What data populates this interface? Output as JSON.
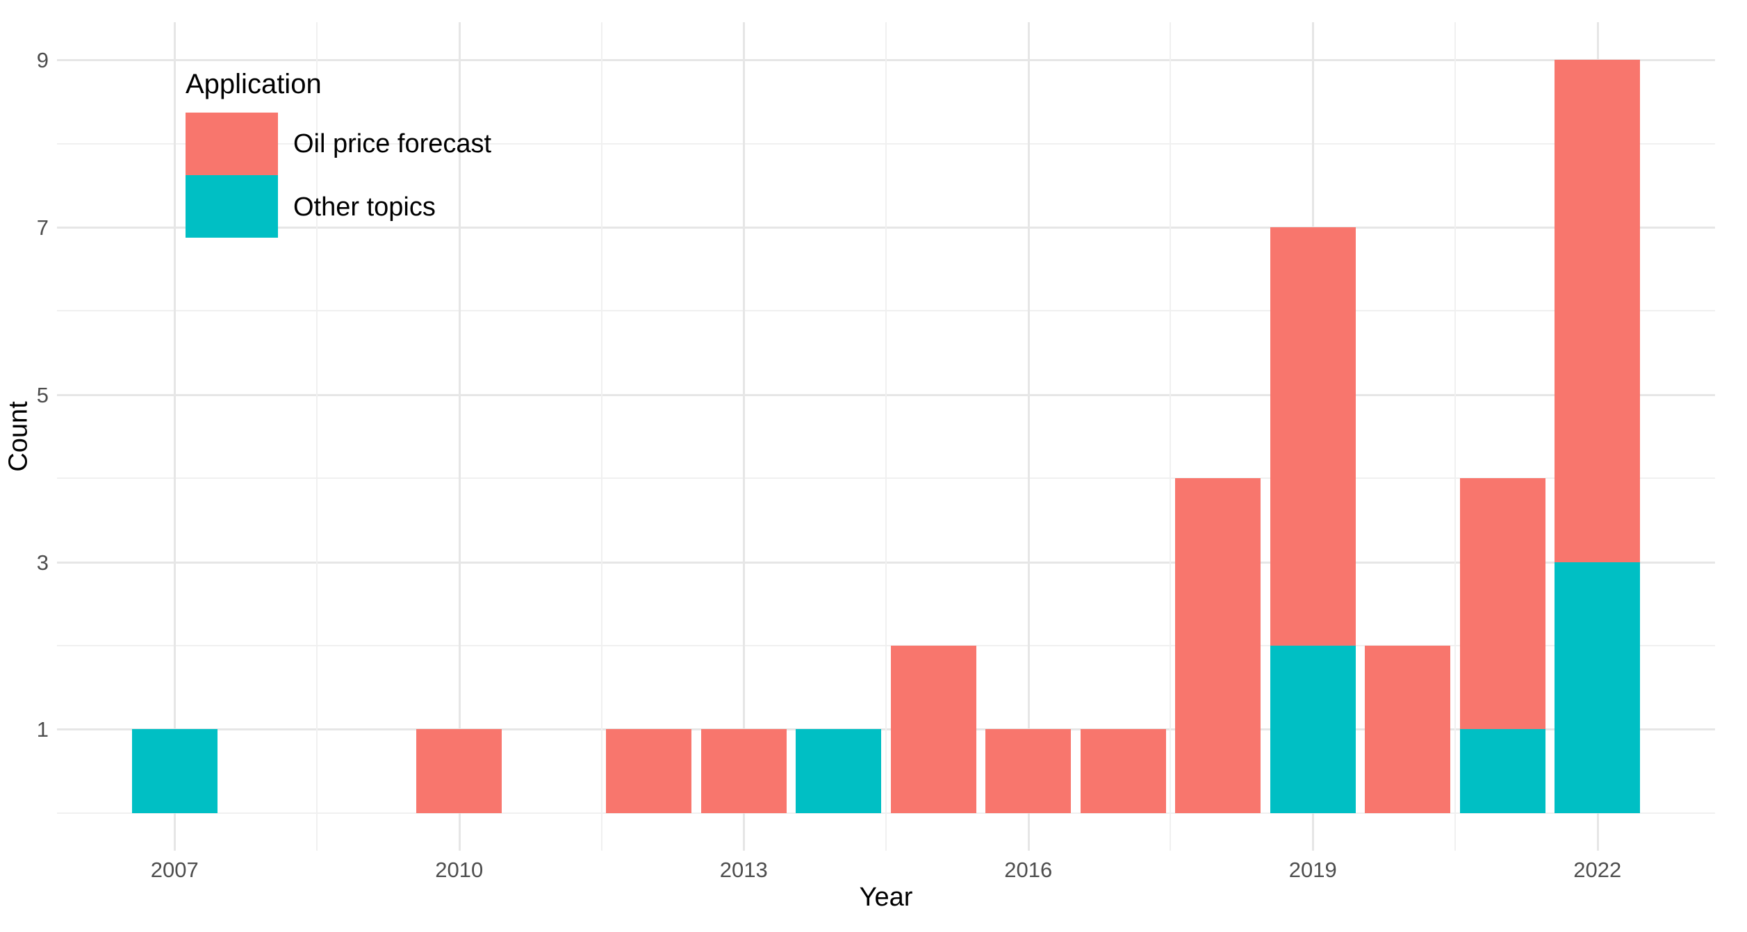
{
  "chart_data": {
    "type": "bar",
    "stacked": true,
    "title": "",
    "xlabel": "Year",
    "ylabel": "Count",
    "x": [
      2007,
      2010,
      2012,
      2013,
      2014,
      2015,
      2016,
      2017,
      2018,
      2019,
      2020,
      2021,
      2022
    ],
    "series": [
      {
        "name": "Oil price forecast",
        "color": "#F8766D",
        "values": [
          0,
          1,
          1,
          1,
          0,
          2,
          1,
          1,
          4,
          5,
          2,
          3,
          6
        ]
      },
      {
        "name": "Other topics",
        "color": "#00BFC4",
        "values": [
          1,
          0,
          0,
          0,
          1,
          0,
          0,
          0,
          0,
          2,
          0,
          1,
          3
        ]
      }
    ],
    "stack_order_bottom_to_top": [
      "Other topics",
      "Oil price forecast"
    ],
    "bar_width_years": 0.9,
    "axes": {
      "x": {
        "label": "Year",
        "ticks": [
          2007,
          2010,
          2013,
          2016,
          2019,
          2022
        ],
        "minor_ticks": [
          2008.5,
          2011.5,
          2014.5,
          2017.5,
          2020.5
        ],
        "domain": [
          2005.76,
          2023.24
        ]
      },
      "y": {
        "label": "Count",
        "ticks": [
          1,
          3,
          5,
          7,
          9
        ],
        "minor_ticks": [
          0,
          2,
          4,
          6,
          8
        ],
        "domain": [
          -0.45,
          9.45
        ]
      }
    },
    "legend": {
      "title": "Application",
      "position": "inside-top-left",
      "entries": [
        {
          "label": "Oil price forecast",
          "color": "#F8766D"
        },
        {
          "label": "Other topics",
          "color": "#00BFC4"
        }
      ]
    },
    "grid": true,
    "colors": {
      "background": "#FFFFFF",
      "grid_major": "#E6E6E6",
      "grid_minor": "#F0F0F0",
      "tick_label": "#4D4D4D",
      "axis_title": "#000000"
    }
  }
}
